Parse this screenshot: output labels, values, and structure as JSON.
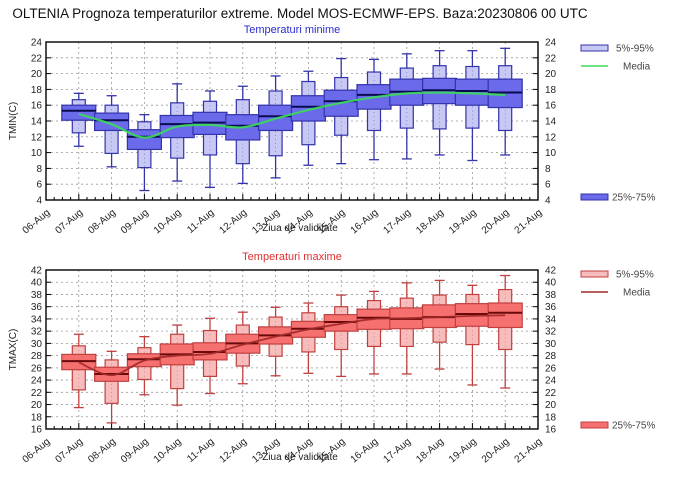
{
  "page": {
    "title": "OLTENIA  Prognoza temperaturilor extreme.  Model MOS-ECMWF-EPS. Baza:20230806 00 UTC"
  },
  "chart_data": [
    {
      "id": "tmin",
      "type": "boxplot",
      "title": "Temperaturi minime",
      "title_color": "#2b2bd6",
      "xlabel": "Ziua de validitate",
      "ylabel": "TMIN(C)",
      "ylim": [
        4,
        24
      ],
      "yticks": [
        4,
        6,
        8,
        10,
        12,
        14,
        16,
        18,
        20,
        22,
        24
      ],
      "xticks": [
        "06-Aug",
        "07-Aug",
        "08-Aug",
        "09-Aug",
        "10-Aug",
        "11-Aug",
        "12-Aug",
        "13-Aug",
        "14-Aug",
        "15-Aug",
        "16-Aug",
        "17-Aug",
        "18-Aug",
        "19-Aug",
        "20-Aug",
        "21-Aug"
      ],
      "grid": true,
      "colors": {
        "outer_fill": "#c8c8f5",
        "inner_fill": "#6a6aea",
        "stroke": "#3333aa",
        "median": "#0a0a50",
        "mean_line": "#3ddc5a"
      },
      "legend": [
        {
          "label": "5%-95%",
          "kind": "outer-box"
        },
        {
          "label": "Media",
          "kind": "mean-line"
        },
        {
          "label": "25%-75%",
          "kind": "inner-box"
        }
      ],
      "legend_position": "right",
      "days": [
        "07-Aug",
        "08-Aug",
        "09-Aug",
        "10-Aug",
        "11-Aug",
        "12-Aug",
        "13-Aug",
        "14-Aug",
        "15-Aug",
        "16-Aug",
        "17-Aug",
        "18-Aug",
        "19-Aug",
        "20-Aug"
      ],
      "series": [
        {
          "name": "min",
          "values": [
            10.8,
            8.2,
            5.2,
            6.4,
            5.6,
            6.1,
            6.8,
            8.4,
            8.6,
            9.1,
            9.2,
            9.7,
            9.0,
            9.7
          ]
        },
        {
          "name": "p5",
          "values": [
            12.5,
            9.9,
            8.1,
            9.3,
            9.7,
            8.6,
            9.6,
            11.0,
            12.2,
            12.8,
            13.1,
            13.0,
            13.1,
            12.8
          ]
        },
        {
          "name": "p25",
          "values": [
            14.1,
            12.8,
            10.4,
            11.9,
            12.3,
            11.6,
            12.8,
            14.0,
            14.6,
            15.5,
            16.0,
            16.2,
            16.0,
            15.7
          ]
        },
        {
          "name": "median",
          "values": [
            15.3,
            14.1,
            12.0,
            13.6,
            13.8,
            13.4,
            14.6,
            15.8,
            16.5,
            17.3,
            17.7,
            17.9,
            17.8,
            17.6
          ]
        },
        {
          "name": "p75",
          "values": [
            16.0,
            15.0,
            12.9,
            14.7,
            15.1,
            14.8,
            16.0,
            17.2,
            17.9,
            18.6,
            19.3,
            19.4,
            19.3,
            19.3
          ]
        },
        {
          "name": "p95",
          "values": [
            16.7,
            16.0,
            13.9,
            16.3,
            16.5,
            16.7,
            17.8,
            19.0,
            19.5,
            20.2,
            20.7,
            21.0,
            20.9,
            21.0
          ]
        },
        {
          "name": "max",
          "values": [
            17.5,
            17.2,
            14.8,
            18.7,
            17.8,
            18.4,
            19.7,
            20.3,
            21.9,
            21.8,
            22.5,
            22.9,
            22.9,
            23.2
          ]
        },
        {
          "name": "Media",
          "values": [
            14.9,
            13.6,
            11.9,
            13.3,
            13.5,
            13.2,
            14.3,
            15.4,
            16.3,
            17.0,
            17.5,
            17.6,
            17.5,
            17.3
          ]
        }
      ]
    },
    {
      "id": "tmax",
      "type": "boxplot",
      "title": "Temperaturi maxime",
      "title_color": "#e03030",
      "xlabel": "Ziua de validitate",
      "ylabel": "TMAX(C)",
      "ylim": [
        16,
        42
      ],
      "yticks": [
        16,
        18,
        20,
        22,
        24,
        26,
        28,
        30,
        32,
        34,
        36,
        38,
        40,
        42
      ],
      "xticks": [
        "06-Aug",
        "07-Aug",
        "08-Aug",
        "09-Aug",
        "10-Aug",
        "11-Aug",
        "12-Aug",
        "13-Aug",
        "14-Aug",
        "15-Aug",
        "16-Aug",
        "17-Aug",
        "18-Aug",
        "19-Aug",
        "20-Aug",
        "21-Aug"
      ],
      "grid": true,
      "colors": {
        "outer_fill": "#f7bcbc",
        "inner_fill": "#f77070",
        "stroke": "#c04040",
        "median": "#6a0a0a",
        "mean_line": "#a02828"
      },
      "legend": [
        {
          "label": "5%-95%",
          "kind": "outer-box"
        },
        {
          "label": "Media",
          "kind": "mean-line"
        },
        {
          "label": "25%-75%",
          "kind": "inner-box"
        }
      ],
      "legend_position": "right",
      "days": [
        "07-Aug",
        "08-Aug",
        "09-Aug",
        "10-Aug",
        "11-Aug",
        "12-Aug",
        "13-Aug",
        "14-Aug",
        "15-Aug",
        "16-Aug",
        "17-Aug",
        "18-Aug",
        "19-Aug",
        "20-Aug"
      ],
      "series": [
        {
          "name": "min",
          "values": [
            19.5,
            17.0,
            21.6,
            19.9,
            21.8,
            23.4,
            24.7,
            25.1,
            24.6,
            25.0,
            25.0,
            25.8,
            23.2,
            22.7
          ]
        },
        {
          "name": "p5",
          "values": [
            22.4,
            20.2,
            24.1,
            22.6,
            24.6,
            26.3,
            27.9,
            28.6,
            29.0,
            29.5,
            29.5,
            30.2,
            29.8,
            29.0
          ]
        },
        {
          "name": "p25",
          "values": [
            25.7,
            23.8,
            26.2,
            26.5,
            27.3,
            28.4,
            29.9,
            31.0,
            32.0,
            32.3,
            32.4,
            32.6,
            32.8,
            32.6
          ]
        },
        {
          "name": "median",
          "values": [
            27.1,
            25.0,
            27.4,
            28.2,
            28.6,
            30.0,
            31.3,
            32.4,
            33.5,
            34.2,
            34.0,
            34.3,
            34.8,
            35.0
          ]
        },
        {
          "name": "p75",
          "values": [
            28.2,
            26.1,
            28.3,
            29.9,
            30.1,
            31.5,
            32.7,
            33.6,
            34.7,
            35.6,
            35.8,
            36.3,
            36.5,
            36.6
          ]
        },
        {
          "name": "p95",
          "values": [
            29.6,
            27.3,
            29.3,
            31.5,
            32.1,
            33.0,
            34.3,
            35.0,
            36.0,
            37.0,
            37.4,
            37.9,
            38.0,
            38.8
          ]
        },
        {
          "name": "max",
          "values": [
            31.5,
            28.7,
            31.1,
            33.0,
            34.1,
            35.1,
            35.9,
            36.6,
            37.9,
            38.5,
            39.9,
            40.3,
            39.5,
            41.1
          ]
        },
        {
          "name": "Media",
          "values": [
            26.9,
            24.8,
            27.2,
            28.0,
            28.3,
            29.8,
            31.1,
            32.3,
            33.2,
            34.0,
            34.1,
            34.3,
            34.5,
            34.6
          ]
        }
      ]
    }
  ]
}
